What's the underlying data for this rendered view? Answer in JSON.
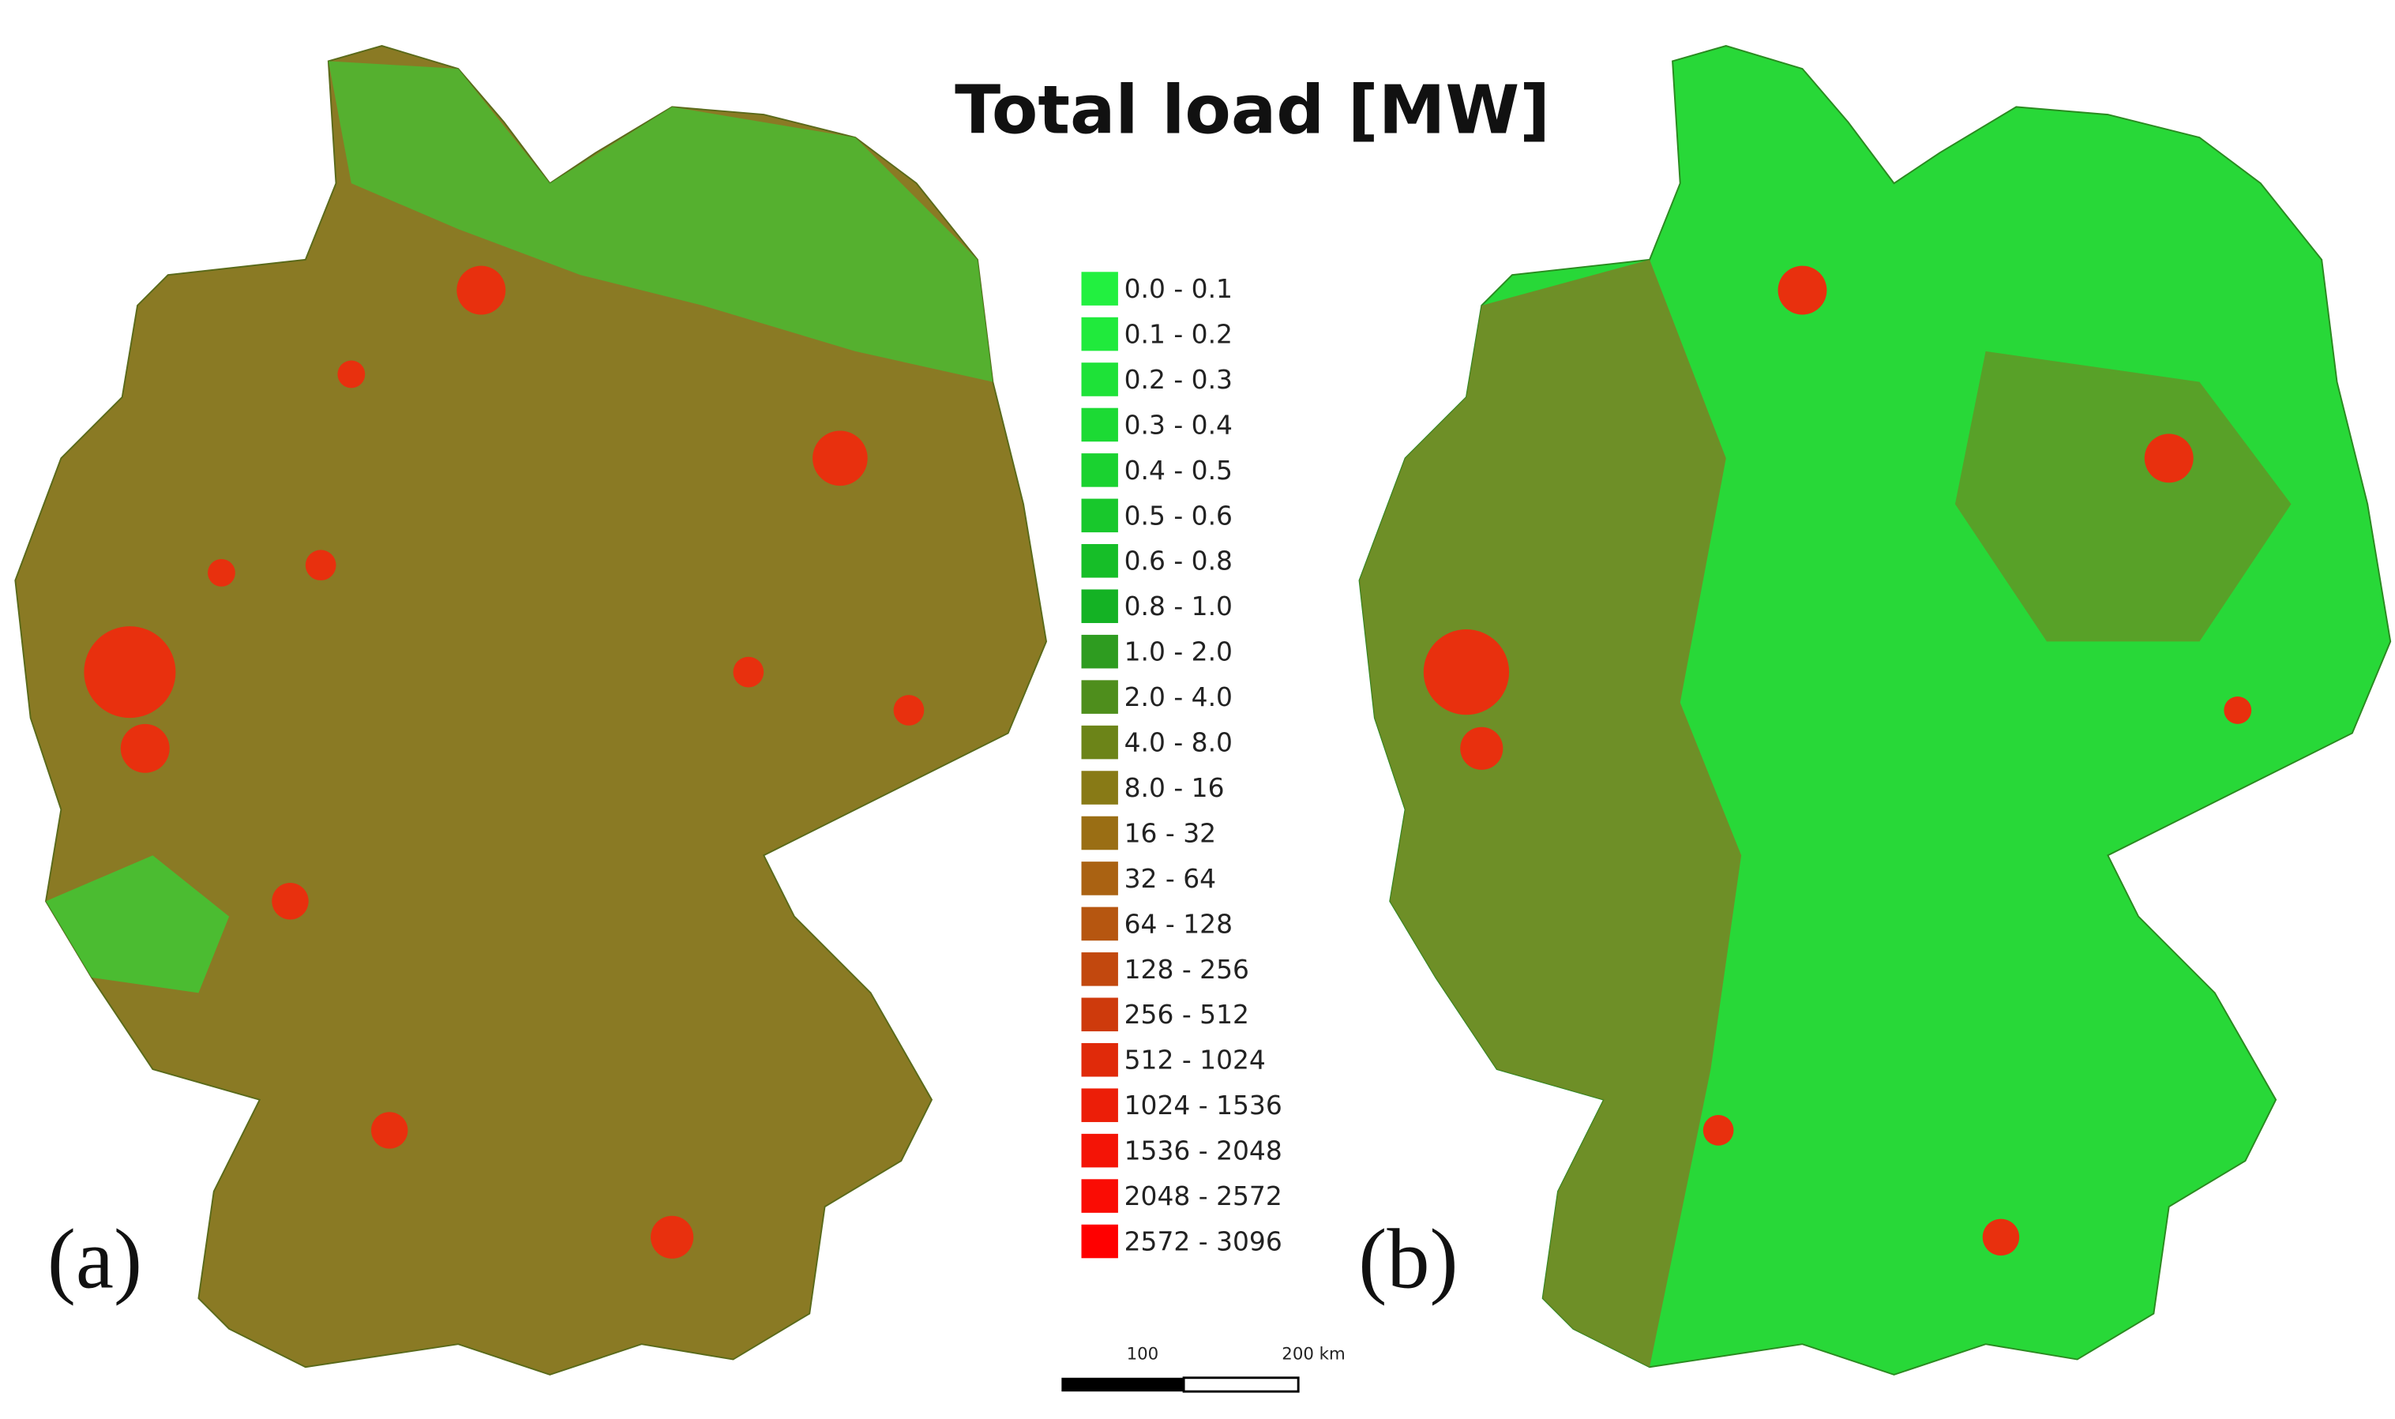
{
  "title": "Total load [MW]",
  "legend": {
    "items": [
      {
        "label": "0.0 - 0.1",
        "color": "#22f040"
      },
      {
        "label": "0.1 - 0.2",
        "color": "#20ea3c"
      },
      {
        "label": "0.2 - 0.3",
        "color": "#1ee238"
      },
      {
        "label": "0.3 - 0.4",
        "color": "#1cda34"
      },
      {
        "label": "0.4 - 0.5",
        "color": "#1ad230"
      },
      {
        "label": "0.5 - 0.6",
        "color": "#18c82c"
      },
      {
        "label": "0.6 - 0.8",
        "color": "#16be28"
      },
      {
        "label": "0.8 - 1.0",
        "color": "#14b224"
      },
      {
        "label": "1.0 - 2.0",
        "color": "#2e9c20"
      },
      {
        "label": "2.0 - 4.0",
        "color": "#4e8e1c"
      },
      {
        "label": "4.0 - 8.0",
        "color": "#6c8418"
      },
      {
        "label": "8.0 - 16",
        "color": "#887a16"
      },
      {
        "label": "16 - 32",
        "color": "#9a6e14"
      },
      {
        "label": "32 - 64",
        "color": "#aa6212"
      },
      {
        "label": "64 - 128",
        "color": "#b65610"
      },
      {
        "label": "128 - 256",
        "color": "#c2480e"
      },
      {
        "label": "256 - 512",
        "color": "#ce3a0c"
      },
      {
        "label": "512 - 1024",
        "color": "#e02a0a"
      },
      {
        "label": "1024 - 1536",
        "color": "#ec1e08"
      },
      {
        "label": "1536 - 2048",
        "color": "#f41406"
      },
      {
        "label": "2048 - 2572",
        "color": "#fa0c04"
      },
      {
        "label": "2572 - 3096",
        "color": "#ff0000"
      }
    ]
  },
  "panels": [
    {
      "label": "(a)"
    },
    {
      "label": "(b)"
    }
  ],
  "scale_bar": {
    "labels": [
      "100",
      "200 km"
    ]
  }
}
